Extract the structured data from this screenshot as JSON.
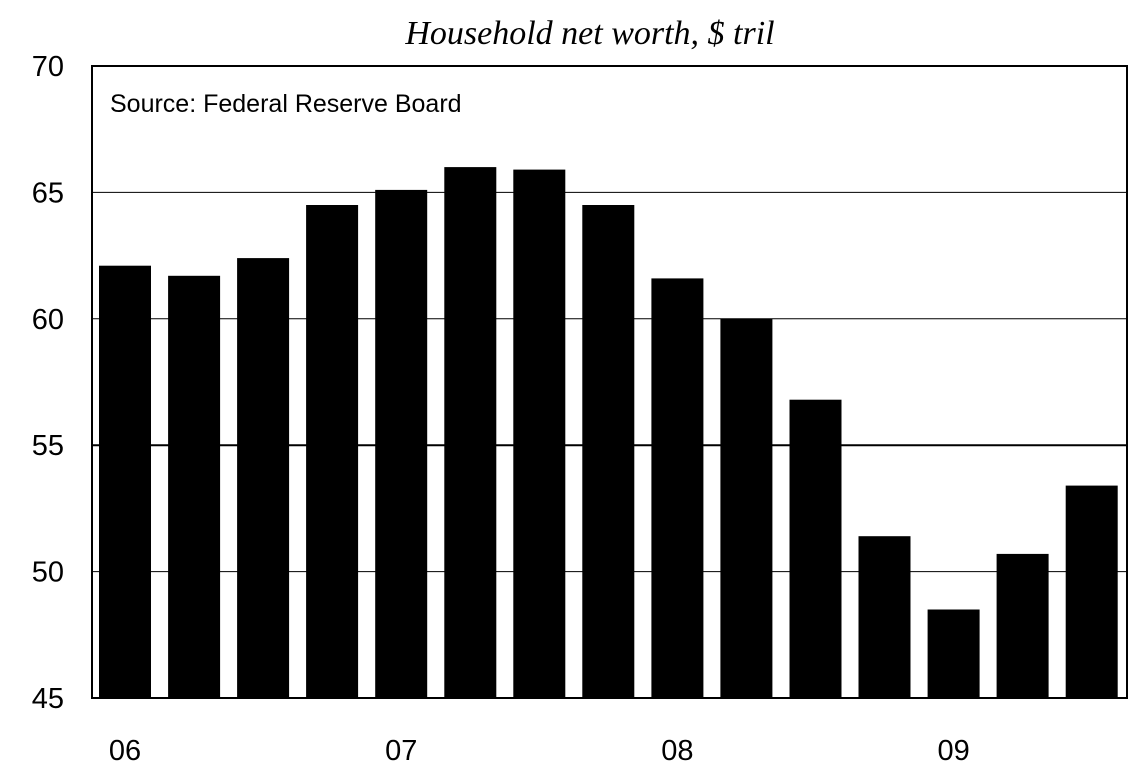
{
  "chart_data": {
    "type": "bar",
    "title": "Household net worth, $ tril",
    "annotation": "Source: Federal Reserve Board",
    "xlabel": "",
    "ylabel": "",
    "ylim": [
      45,
      70
    ],
    "yticks": [
      45,
      50,
      55,
      60,
      65,
      70
    ],
    "x_tick_labels": [
      {
        "label": "06",
        "at_bar": 0
      },
      {
        "label": "07",
        "at_bar": 4
      },
      {
        "label": "08",
        "at_bar": 8
      },
      {
        "label": "09",
        "at_bar": 12
      }
    ],
    "grid": true,
    "values": [
      62.1,
      61.7,
      62.4,
      64.5,
      65.1,
      66.0,
      65.9,
      64.5,
      61.6,
      60.0,
      56.8,
      51.4,
      48.5,
      50.7,
      53.4
    ],
    "bar_color": "#000000"
  }
}
